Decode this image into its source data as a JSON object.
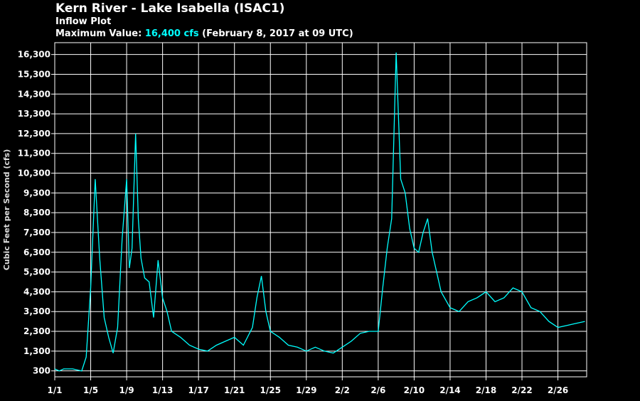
{
  "header": {
    "title": "Kern River - Lake Isabella (ISAC1)",
    "subtitle": "Inflow Plot",
    "max_label": "Maximum Value:",
    "max_value": "16,400 cfs",
    "max_when": "(February 8, 2017 at 09 UTC)"
  },
  "colors": {
    "series": "#00ffff",
    "axis": "#ffffff",
    "grid": "#ffffff",
    "background": "#000000"
  },
  "chart_data": {
    "type": "line",
    "title": "Kern River - Lake Isabella (ISAC1)",
    "subtitle": "Inflow Plot",
    "ylabel": "Cubic Feet per Second (cfs)",
    "xlabel": "",
    "ylim": [
      0,
      16900
    ],
    "yticks": [
      300,
      1300,
      2300,
      3300,
      4300,
      5300,
      6300,
      7300,
      8300,
      9300,
      10300,
      11300,
      12300,
      13300,
      14300,
      15300,
      16300
    ],
    "ytick_labels": [
      "300",
      "1,300",
      "2,300",
      "3,300",
      "4,300",
      "5,300",
      "6,300",
      "7,300",
      "8,300",
      "9,300",
      "10,300",
      "11,300",
      "12,300",
      "13,300",
      "14,300",
      "15,300",
      "16,300"
    ],
    "xlim": [
      0,
      59.2
    ],
    "xticks": [
      0,
      4,
      8,
      12,
      16,
      20,
      24,
      28,
      32,
      36,
      40,
      44,
      48,
      52,
      56
    ],
    "xtick_labels": [
      "1/1",
      "1/5",
      "1/9",
      "1/13",
      "1/17",
      "1/21",
      "1/25",
      "1/29",
      "2/2",
      "2/6",
      "2/10",
      "2/14",
      "2/18",
      "2/22",
      "2/26"
    ],
    "grid": true,
    "series": [
      {
        "name": "Inflow",
        "color": "#00ffff",
        "x": [
          0,
          0.5,
          1,
          2,
          3,
          3.5,
          4,
          4.5,
          5,
          5.5,
          6,
          6.5,
          7,
          7.5,
          8,
          8.3,
          8.6,
          9,
          9.3,
          9.6,
          10,
          10.5,
          11,
          11.5,
          12,
          12.5,
          13,
          14,
          15,
          16,
          17,
          18,
          19,
          20,
          21,
          22,
          22.5,
          23,
          23.5,
          24,
          25,
          26,
          27,
          28,
          29,
          30,
          31,
          32,
          33,
          34,
          35,
          36,
          36.5,
          37,
          37.5,
          38,
          38.5,
          39,
          39.5,
          40,
          40.5,
          41,
          41.5,
          42,
          42.5,
          43,
          44,
          45,
          46,
          47,
          48,
          49,
          50,
          51,
          52,
          53,
          54,
          55,
          56,
          57,
          58,
          59
        ],
        "y": [
          400,
          300,
          400,
          400,
          300,
          1000,
          4500,
          10000,
          6000,
          3000,
          2000,
          1200,
          2500,
          7000,
          10000,
          5500,
          6500,
          12300,
          8000,
          6000,
          5000,
          4800,
          3000,
          5900,
          4000,
          3300,
          2300,
          2000,
          1600,
          1400,
          1300,
          1600,
          1800,
          2000,
          1600,
          2500,
          4000,
          5100,
          3300,
          2300,
          2000,
          1600,
          1500,
          1300,
          1500,
          1300,
          1200,
          1500,
          1800,
          2200,
          2300,
          2300,
          4500,
          6500,
          8000,
          16400,
          10000,
          9300,
          7500,
          6500,
          6300,
          7300,
          8000,
          6300,
          5300,
          4300,
          3500,
          3300,
          3800,
          4000,
          4300,
          3800,
          4000,
          4500,
          4300,
          3500,
          3300,
          2800,
          2500,
          2600,
          2700,
          2800
        ]
      }
    ]
  }
}
